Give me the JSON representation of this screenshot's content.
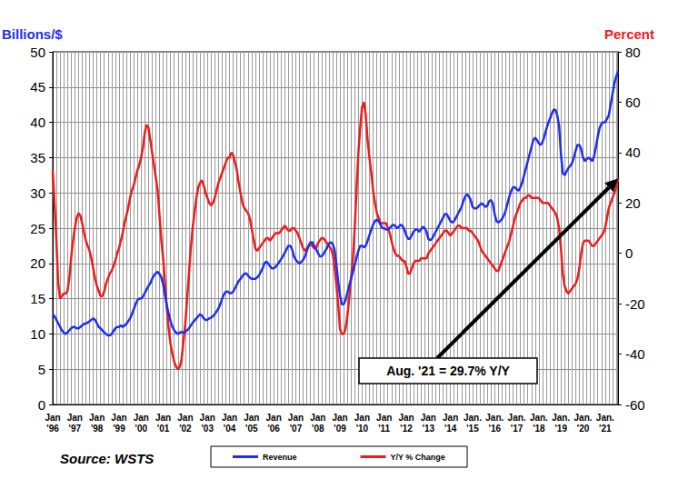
{
  "chart_data": {
    "type": "line",
    "y_label": "Billions/$",
    "y2_label": "Percent",
    "source": "Source: WSTS",
    "annotation": "Aug. '21 = 29.7% Y/Y",
    "grid": true,
    "legend": "bottom",
    "categories": [
      "Jan '96",
      null,
      null,
      null,
      null,
      null,
      null,
      null,
      null,
      null,
      null,
      null,
      "Jan '97",
      null,
      null,
      null,
      null,
      null,
      null,
      null,
      null,
      null,
      null,
      null,
      "Jan '98",
      null,
      null,
      null,
      null,
      null,
      null,
      null,
      null,
      null,
      null,
      null,
      "Jan '99",
      null,
      null,
      null,
      null,
      null,
      null,
      null,
      null,
      null,
      null,
      null,
      "Jan '00",
      null,
      null,
      null,
      null,
      null,
      null,
      null,
      null,
      null,
      null,
      null,
      "Jan '01",
      null,
      null,
      null,
      null,
      null,
      null,
      null,
      null,
      null,
      null,
      null,
      "Jan '02",
      null,
      null,
      null,
      null,
      null,
      null,
      null,
      null,
      null,
      null,
      null,
      "Jan '03",
      null,
      null,
      null,
      null,
      null,
      null,
      null,
      null,
      null,
      null,
      null,
      "Jan '04",
      null,
      null,
      null,
      null,
      null,
      null,
      null,
      null,
      null,
      null,
      null,
      "Jan '05",
      null,
      null,
      null,
      null,
      null,
      null,
      null,
      null,
      null,
      null,
      null,
      "Jan '06",
      null,
      null,
      null,
      null,
      null,
      null,
      null,
      null,
      null,
      null,
      null,
      "Jan '07",
      null,
      null,
      null,
      null,
      null,
      null,
      null,
      null,
      null,
      null,
      null,
      "Jan '08",
      null,
      null,
      null,
      null,
      null,
      null,
      null,
      null,
      null,
      null,
      null,
      "Jan '09",
      null,
      null,
      null,
      null,
      null,
      null,
      null,
      null,
      null,
      null,
      null,
      "Jan '10",
      null,
      null,
      null,
      null,
      null,
      null,
      null,
      null,
      null,
      null,
      null,
      "Jan '11",
      null,
      null,
      null,
      null,
      null,
      null,
      null,
      null,
      null,
      null,
      null,
      "Jan '12",
      null,
      null,
      null,
      null,
      null,
      null,
      null,
      null,
      null,
      null,
      null,
      "Jan '13",
      null,
      null,
      null,
      null,
      null,
      null,
      null,
      null,
      null,
      null,
      null,
      "Jan '14",
      null,
      null,
      null,
      null,
      null,
      null,
      null,
      null,
      null,
      null,
      null,
      "Jan. '15",
      null,
      null,
      null,
      null,
      null,
      null,
      null,
      null,
      null,
      null,
      null,
      "Jan. '16",
      null,
      null,
      null,
      null,
      null,
      null,
      null,
      null,
      null,
      null,
      null,
      "Jan. '17",
      null,
      null,
      null,
      null,
      null,
      null,
      null,
      null,
      null,
      null,
      null,
      "Jan. '18",
      null,
      null,
      null,
      null,
      null,
      null,
      null,
      null,
      null,
      null,
      null,
      "Jan. '19",
      null,
      null,
      null,
      null,
      null,
      null,
      null,
      null,
      null,
      null,
      null,
      "Jan. '20",
      null,
      null,
      null,
      null,
      null,
      null,
      null,
      null,
      null,
      null,
      null,
      "Jan. '21",
      null,
      null,
      null,
      null,
      null,
      null,
      null
    ],
    "ylim": [
      0,
      50
    ],
    "yticks": [
      0,
      5,
      10,
      15,
      20,
      25,
      30,
      35,
      40,
      45,
      50
    ],
    "y2lim": [
      -60,
      80
    ],
    "y2ticks": [
      -60,
      -40,
      -20,
      0,
      20,
      40,
      60,
      80
    ],
    "series": [
      {
        "name": "Revenue",
        "color": "#1f2ff0",
        "values": [
          12.8,
          12.5,
          12.0,
          11.5,
          11.0,
          10.5,
          10.2,
          10.0,
          10.2,
          10.5,
          10.8,
          11.0,
          11.0,
          10.8,
          10.8,
          11.0,
          11.2,
          11.4,
          11.5,
          11.6,
          11.8,
          12.0,
          12.2,
          12.0,
          11.5,
          11.0,
          10.8,
          10.5,
          10.2,
          10.0,
          9.8,
          9.8,
          10.0,
          10.4,
          10.8,
          11.0,
          11.0,
          11.2,
          11.0,
          11.2,
          11.4,
          11.8,
          12.2,
          12.8,
          13.5,
          14.2,
          14.8,
          15.0,
          15.0,
          15.3,
          15.8,
          16.3,
          16.8,
          17.2,
          17.8,
          18.3,
          18.6,
          18.8,
          18.5,
          18.0,
          17.0,
          15.5,
          14.0,
          12.8,
          11.8,
          11.0,
          10.5,
          10.2,
          10.0,
          10.2,
          10.3,
          10.2,
          10.3,
          10.5,
          10.8,
          11.2,
          11.6,
          11.9,
          12.2,
          12.5,
          12.8,
          12.6,
          12.2,
          12.0,
          12.0,
          12.2,
          12.3,
          12.5,
          12.8,
          13.2,
          13.6,
          14.2,
          15.0,
          15.6,
          16.0,
          16.0,
          15.8,
          15.8,
          16.0,
          16.5,
          17.0,
          17.5,
          17.8,
          18.2,
          18.5,
          18.6,
          18.3,
          18.0,
          17.8,
          17.8,
          17.8,
          18.0,
          18.3,
          18.8,
          19.3,
          20.0,
          20.3,
          20.0,
          19.6,
          19.3,
          19.3,
          19.5,
          19.8,
          20.2,
          20.6,
          21.0,
          21.5,
          22.0,
          22.5,
          22.5,
          22.0,
          21.0,
          20.5,
          20.2,
          20.0,
          20.2,
          20.5,
          21.0,
          21.8,
          22.5,
          23.0,
          23.0,
          22.5,
          22.0,
          21.5,
          21.0,
          21.0,
          21.3,
          21.8,
          22.2,
          22.8,
          23.0,
          22.8,
          22.0,
          20.0,
          17.5,
          15.5,
          14.2,
          14.2,
          14.8,
          15.8,
          16.8,
          17.8,
          18.8,
          19.8,
          20.8,
          21.8,
          22.5,
          22.5,
          22.3,
          22.5,
          23.2,
          24.0,
          24.8,
          25.5,
          26.0,
          26.2,
          26.0,
          25.5,
          25.0,
          25.0,
          24.8,
          24.8,
          25.0,
          25.3,
          25.5,
          25.3,
          25.0,
          25.2,
          25.5,
          25.3,
          24.8,
          24.0,
          23.5,
          23.5,
          24.0,
          24.5,
          24.8,
          24.8,
          24.5,
          24.8,
          25.2,
          25.0,
          24.5,
          23.5,
          23.3,
          23.5,
          24.0,
          24.5,
          25.0,
          25.5,
          26.0,
          26.5,
          27.0,
          27.0,
          26.5,
          26.0,
          25.8,
          26.0,
          26.5,
          27.0,
          27.5,
          28.0,
          28.8,
          29.5,
          29.8,
          29.5,
          29.0,
          28.0,
          27.8,
          27.8,
          28.0,
          28.3,
          28.5,
          28.3,
          28.0,
          28.2,
          28.8,
          29.0,
          28.5,
          27.0,
          26.0,
          25.8,
          26.0,
          26.3,
          26.8,
          27.5,
          28.5,
          29.5,
          30.3,
          30.8,
          30.8,
          30.5,
          30.3,
          30.8,
          31.5,
          32.5,
          33.5,
          34.5,
          35.5,
          36.5,
          37.5,
          37.8,
          37.5,
          37.0,
          36.8,
          37.2,
          38.0,
          39.0,
          39.8,
          40.5,
          41.2,
          41.8,
          41.8,
          41.0,
          39.5,
          35.5,
          32.8,
          32.5,
          33.0,
          33.5,
          33.8,
          34.2,
          35.0,
          36.0,
          36.8,
          36.8,
          36.2,
          35.0,
          34.5,
          34.8,
          35.0,
          34.8,
          34.5,
          35.2,
          36.5,
          38.0,
          39.2,
          39.8,
          40.0,
          40.0,
          40.5,
          41.0,
          42.5,
          44.0,
          45.5,
          46.5,
          47.2
        ]
      },
      {
        "name": "Y/Y % Change",
        "color": "#ee1c1c",
        "axis": "y2",
        "values": [
          33,
          20,
          5,
          -12,
          -18,
          -17,
          -16,
          -16,
          -15,
          -10,
          -2,
          5,
          10,
          14,
          16,
          15,
          12,
          8,
          5,
          3,
          1,
          -2,
          -6,
          -10,
          -13,
          -15,
          -17,
          -17,
          -15,
          -12,
          -10,
          -8,
          -7,
          -5,
          -3,
          0,
          2,
          5,
          8,
          12,
          15,
          18,
          22,
          25,
          27,
          30,
          33,
          35,
          38,
          42,
          48,
          51,
          50,
          45,
          40,
          35,
          30,
          25,
          15,
          5,
          -2,
          -12,
          -22,
          -30,
          -36,
          -40,
          -43,
          -45,
          -46,
          -45,
          -42,
          -35,
          -28,
          -18,
          -8,
          2,
          10,
          16,
          22,
          26,
          28,
          29,
          27,
          24,
          22,
          20,
          19,
          20,
          22,
          25,
          28,
          30,
          32,
          34,
          36,
          38,
          38,
          40,
          39,
          36,
          33,
          28,
          24,
          20,
          18,
          17,
          16,
          14,
          10,
          6,
          2,
          1,
          2,
          3,
          4,
          5,
          6,
          6,
          5,
          6,
          7,
          8,
          8,
          8,
          9,
          10,
          11,
          10,
          9,
          9,
          10,
          10,
          9,
          8,
          6,
          4,
          2,
          1,
          2,
          3,
          4,
          3,
          2,
          2,
          4,
          5,
          6,
          6,
          5,
          4,
          3,
          2,
          0,
          -5,
          -12,
          -20,
          -30,
          -32,
          -32,
          -30,
          -25,
          -18,
          -10,
          -2,
          10,
          25,
          40,
          50,
          58,
          60,
          55,
          45,
          38,
          32,
          25,
          20,
          16,
          14,
          12,
          12,
          12,
          12,
          10,
          8,
          5,
          2,
          0,
          -1,
          -1,
          -2,
          -3,
          -3,
          -5,
          -8,
          -8,
          -6,
          -4,
          -3,
          -3,
          -3,
          -2,
          -2,
          -2,
          -2,
          0,
          1,
          2,
          3,
          4,
          5,
          6,
          7,
          8,
          9,
          9,
          8,
          7,
          8,
          9,
          10,
          11,
          11,
          10,
          10,
          10,
          10,
          9,
          9,
          8,
          7,
          6,
          5,
          3,
          1,
          0,
          -1,
          -2,
          -3,
          -4,
          -5,
          -6,
          -7,
          -7,
          -5,
          -3,
          -1,
          1,
          3,
          5,
          8,
          11,
          14,
          16,
          18,
          20,
          21,
          22,
          22,
          23,
          23,
          22,
          22,
          22,
          22,
          22,
          21,
          20,
          20,
          20,
          20,
          19,
          18,
          17,
          16,
          14,
          10,
          2,
          -8,
          -13,
          -15,
          -16,
          -15,
          -14,
          -13,
          -12,
          -10,
          -6,
          0,
          4,
          5,
          5,
          5,
          4,
          3,
          3,
          4,
          5,
          6,
          7,
          8,
          10,
          14,
          18,
          20,
          22,
          24,
          26,
          29.7
        ]
      }
    ]
  }
}
